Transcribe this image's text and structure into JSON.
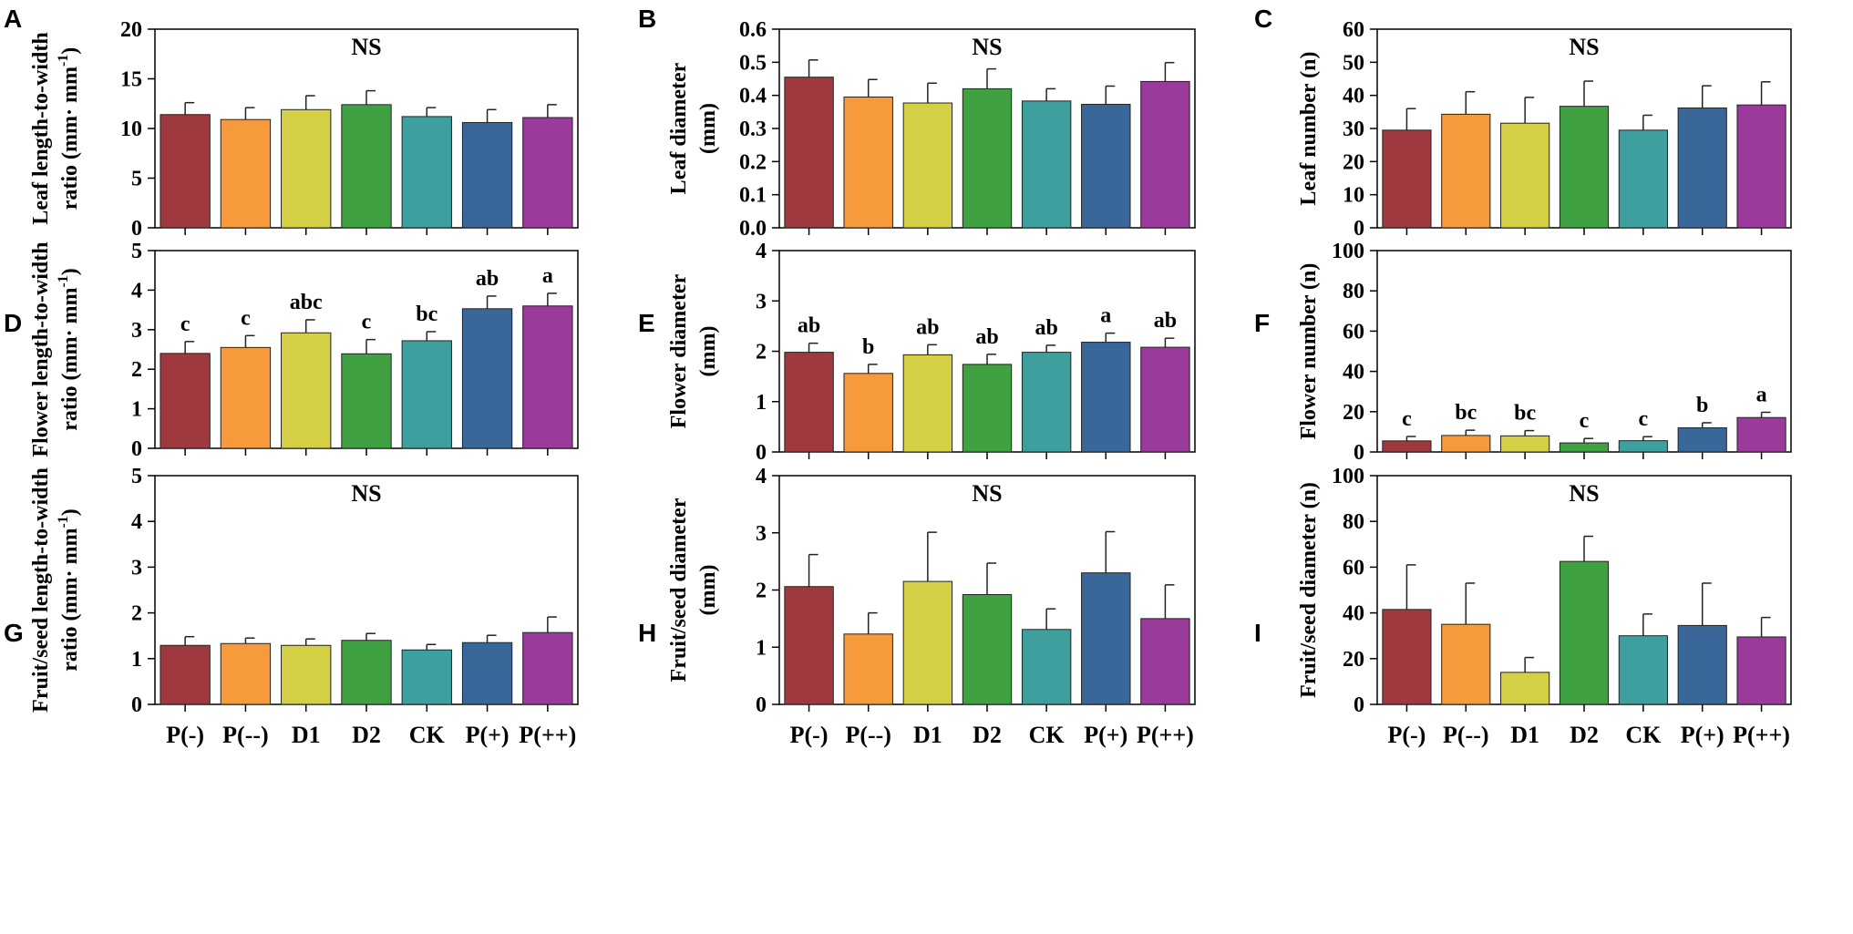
{
  "figure": {
    "categories": [
      "P(-)",
      "P(--)",
      "D1",
      "D2",
      "CK",
      "P(+)",
      "P(++)"
    ],
    "bar_colors": [
      "#9e3a3f",
      "#f79a3c",
      "#d3d046",
      "#3fa142",
      "#3ea09e",
      "#39679a",
      "#9a3a9b"
    ],
    "axis_color": "#000000"
  },
  "chart_data": [
    {
      "panel": "A",
      "type": "bar",
      "ylabel": [
        "Leaf length-to-width",
        "ratio (mm· mm-1)"
      ],
      "ylim": [
        0,
        20
      ],
      "yticks": [
        0,
        5,
        10,
        15,
        20
      ],
      "yticks_text": [
        "0",
        "5",
        "10",
        "15",
        "20"
      ],
      "values": [
        11.4,
        10.9,
        11.9,
        12.4,
        11.2,
        10.6,
        11.1
      ],
      "errors": [
        1.2,
        1.2,
        1.4,
        1.4,
        0.9,
        1.3,
        1.3
      ],
      "annotation": "NS",
      "significance": []
    },
    {
      "panel": "B",
      "type": "bar",
      "ylabel": [
        "Leaf diameter",
        "(mm)"
      ],
      "ylim": [
        0,
        0.6
      ],
      "yticks": [
        0,
        0.1,
        0.2,
        0.3,
        0.4,
        0.5,
        0.6
      ],
      "yticks_text": [
        "0.0",
        "0.1",
        "0.2",
        "0.3",
        "0.4",
        "0.5",
        "0.6"
      ],
      "values": [
        0.455,
        0.395,
        0.377,
        0.42,
        0.383,
        0.373,
        0.442
      ],
      "errors": [
        0.052,
        0.053,
        0.06,
        0.06,
        0.037,
        0.055,
        0.057
      ],
      "annotation": "NS",
      "significance": []
    },
    {
      "panel": "C",
      "type": "bar",
      "ylabel": [
        "Leaf number (n)"
      ],
      "ylim": [
        0,
        60
      ],
      "yticks": [
        0,
        10,
        20,
        30,
        40,
        50,
        60
      ],
      "yticks_text": [
        "0",
        "10",
        "20",
        "30",
        "40",
        "50",
        "60"
      ],
      "values": [
        29.5,
        34.3,
        31.6,
        36.7,
        29.5,
        36.2,
        37.1
      ],
      "errors": [
        6.5,
        6.8,
        7.8,
        7.6,
        4.5,
        6.7,
        7.0
      ],
      "annotation": "NS",
      "significance": []
    },
    {
      "panel": "D",
      "type": "bar",
      "ylabel": [
        "Flower length-to-width",
        "ratio (mm· mm-1)"
      ],
      "ylim": [
        0,
        5
      ],
      "yticks": [
        0,
        1,
        2,
        3,
        4,
        5
      ],
      "yticks_text": [
        "0",
        "1",
        "2",
        "3",
        "4",
        "5"
      ],
      "values": [
        2.4,
        2.55,
        2.92,
        2.39,
        2.72,
        3.53,
        3.6
      ],
      "errors": [
        0.3,
        0.3,
        0.33,
        0.36,
        0.23,
        0.32,
        0.32
      ],
      "annotation": "",
      "significance": [
        "c",
        "c",
        "abc",
        "c",
        "bc",
        "ab",
        "a"
      ]
    },
    {
      "panel": "E",
      "type": "bar",
      "ylabel": [
        "Flower diameter",
        "(mm)"
      ],
      "ylim": [
        0,
        4
      ],
      "yticks": [
        0,
        1,
        2,
        3,
        4
      ],
      "yticks_text": [
        "0",
        "1",
        "2",
        "3",
        "4"
      ],
      "values": [
        1.98,
        1.56,
        1.93,
        1.74,
        1.98,
        2.18,
        2.08
      ],
      "errors": [
        0.18,
        0.18,
        0.2,
        0.2,
        0.14,
        0.18,
        0.18
      ],
      "annotation": "",
      "significance": [
        "ab",
        "b",
        "ab",
        "ab",
        "ab",
        "a",
        "ab"
      ]
    },
    {
      "panel": "F",
      "type": "bar",
      "ylabel": [
        "Flower number (n)"
      ],
      "ylim": [
        0,
        100
      ],
      "yticks": [
        0,
        20,
        40,
        60,
        80,
        100
      ],
      "yticks_text": [
        "0",
        "20",
        "40",
        "60",
        "80",
        "100"
      ],
      "values": [
        5.5,
        8.2,
        8.0,
        4.5,
        5.6,
        12.0,
        17.1
      ],
      "errors": [
        2.2,
        2.6,
        2.6,
        2.2,
        2.0,
        2.5,
        2.6
      ],
      "annotation": "",
      "significance": [
        "c",
        "bc",
        "bc",
        "c",
        "c",
        "b",
        "a"
      ]
    },
    {
      "panel": "G",
      "type": "bar",
      "ylabel": [
        "Fruit/seed length-to-width",
        "ratio (mm· mm-1)"
      ],
      "ylim": [
        0,
        5
      ],
      "yticks": [
        0,
        1,
        2,
        3,
        4,
        5
      ],
      "yticks_text": [
        "0",
        "1",
        "2",
        "3",
        "4",
        "5"
      ],
      "values": [
        1.29,
        1.33,
        1.29,
        1.4,
        1.19,
        1.35,
        1.57
      ],
      "errors": [
        0.19,
        0.12,
        0.14,
        0.15,
        0.12,
        0.16,
        0.34
      ],
      "annotation": "NS",
      "significance": []
    },
    {
      "panel": "H",
      "type": "bar",
      "ylabel": [
        "Fruit/seed diameter",
        "(mm)"
      ],
      "ylim": [
        0,
        4
      ],
      "yticks": [
        0,
        1,
        2,
        3,
        4
      ],
      "yticks_text": [
        "0",
        "1",
        "2",
        "3",
        "4"
      ],
      "values": [
        2.06,
        1.23,
        2.15,
        1.92,
        1.31,
        2.3,
        1.5
      ],
      "errors": [
        0.56,
        0.37,
        0.86,
        0.55,
        0.36,
        0.72,
        0.59
      ],
      "annotation": "NS",
      "significance": []
    },
    {
      "panel": "I",
      "type": "bar",
      "ylabel": [
        "Fruit/seed diameter (n)"
      ],
      "ylim": [
        0,
        100
      ],
      "yticks": [
        0,
        20,
        40,
        60,
        80,
        100
      ],
      "yticks_text": [
        "0",
        "20",
        "40",
        "60",
        "80",
        "100"
      ],
      "values": [
        41.5,
        35.0,
        14.0,
        62.5,
        30.0,
        34.5,
        29.5
      ],
      "errors": [
        19.5,
        18.0,
        6.5,
        11.0,
        9.5,
        18.5,
        8.5
      ],
      "annotation": "NS",
      "significance": []
    }
  ]
}
